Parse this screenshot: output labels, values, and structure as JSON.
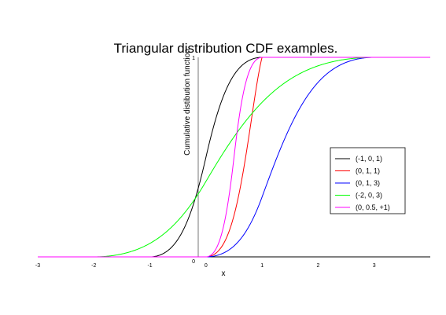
{
  "chart_data": {
    "type": "line",
    "title": "Triangular distribution CDF examples.",
    "xlabel": "x",
    "ylabel": "Cumulative distibution function",
    "xlim": [
      -3,
      4
    ],
    "ylim": [
      0,
      1
    ],
    "x_ticks": [
      "-3",
      "-2",
      "-1",
      "0",
      "1",
      "2",
      "3"
    ],
    "y_ticks": [
      "0",
      "1"
    ],
    "grid": false,
    "legend_position": "right",
    "series": [
      {
        "name": "(-1, 0, 1)",
        "color": "#000000",
        "params": {
          "lower": -1,
          "mode": 0,
          "upper": 1
        }
      },
      {
        "name": "(0, 1, 1)",
        "color": "#ff0000",
        "params": {
          "lower": 0,
          "mode": 1,
          "upper": 1
        }
      },
      {
        "name": "(0, 1, 3)",
        "color": "#0000ff",
        "params": {
          "lower": 0,
          "mode": 1,
          "upper": 3
        }
      },
      {
        "name": "(-2, 0, 3)",
        "color": "#00ff00",
        "params": {
          "lower": -2,
          "mode": 0,
          "upper": 3
        }
      },
      {
        "name": "(0, 0.5, +1)",
        "color": "#ff00ff",
        "params": {
          "lower": 0,
          "mode": 0.5,
          "upper": 1
        }
      }
    ]
  }
}
